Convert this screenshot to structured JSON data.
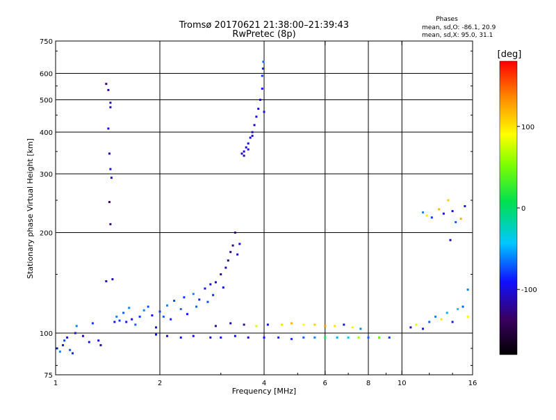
{
  "header": {
    "title_line1": "Tromsø 20170621 21:38:00–21:39:43",
    "title_line2": "RwPretec (8p)"
  },
  "phase_box": {
    "title": "Phases",
    "line_o": "mean, sd,O: -86.1, 20.9",
    "line_x": "mean, sd,X:  95.0, 31.1"
  },
  "chart_data": {
    "type": "scatter",
    "title": "Tromsø 20170621 21:38:00–21:39:43",
    "subtitle": "RwPretec (8p)",
    "xlabel": "Frequency [MHz]",
    "ylabel": "Stationary phase Virtual Height [km]",
    "x_scale": "log",
    "y_scale": "log",
    "xlim": [
      1,
      16
    ],
    "ylim": [
      75,
      750
    ],
    "x_ticks": [
      1,
      2,
      4,
      6,
      8,
      10,
      16
    ],
    "x_tick_labels": [
      "1",
      "2",
      "4",
      "6",
      "8",
      "10",
      "16"
    ],
    "y_ticks": [
      75,
      100,
      200,
      300,
      400,
      500,
      600,
      750
    ],
    "y_tick_labels": [
      "75",
      "100",
      "200",
      "300",
      "400",
      "500",
      "600",
      "750"
    ],
    "grid_x": [
      2,
      4,
      6,
      8,
      10
    ],
    "grid_y": [
      100,
      200,
      300,
      400,
      500,
      600
    ],
    "colorbar": {
      "label": "[deg]",
      "range": [
        -180,
        180
      ],
      "ticks": [
        -100,
        0,
        100
      ],
      "tick_labels": [
        "-100",
        "0",
        "100"
      ]
    },
    "series": [
      {
        "points": [
          [
            1.01,
            90,
            -80
          ],
          [
            1.03,
            88,
            -60
          ],
          [
            1.05,
            92,
            -90
          ],
          [
            1.06,
            95,
            -75
          ],
          [
            1.08,
            97,
            -100
          ],
          [
            1.1,
            89,
            -70
          ],
          [
            1.12,
            87,
            -85
          ],
          [
            1.14,
            100,
            -95
          ],
          [
            1.15,
            105,
            -60
          ],
          [
            1.2,
            98,
            -110
          ],
          [
            1.25,
            94,
            -90
          ],
          [
            1.28,
            107,
            -80
          ],
          [
            1.33,
            95,
            -100
          ],
          [
            1.35,
            92,
            -120
          ],
          [
            1.4,
            143,
            -100
          ],
          [
            1.46,
            145,
            -110
          ],
          [
            1.48,
            108,
            -90
          ],
          [
            1.5,
            112,
            -60
          ],
          [
            1.53,
            109,
            -80
          ],
          [
            1.57,
            115,
            -70
          ],
          [
            1.6,
            108,
            -90
          ],
          [
            1.63,
            119,
            -60
          ],
          [
            1.66,
            110,
            -100
          ],
          [
            1.7,
            106,
            -70
          ],
          [
            1.75,
            112,
            -80
          ],
          [
            1.8,
            117,
            -60
          ],
          [
            1.85,
            120,
            -75
          ],
          [
            1.9,
            113,
            -90
          ],
          [
            1.4,
            558,
            -130
          ],
          [
            1.42,
            535,
            -120
          ],
          [
            1.44,
            490,
            -110
          ],
          [
            1.44,
            475,
            -100
          ],
          [
            1.42,
            410,
            -105
          ],
          [
            1.43,
            345,
            -115
          ],
          [
            1.44,
            310,
            -100
          ],
          [
            1.45,
            292,
            -95
          ],
          [
            1.43,
            247,
            -130
          ],
          [
            1.44,
            212,
            -120
          ],
          [
            1.95,
            104,
            -90
          ],
          [
            2.0,
            116,
            -80
          ],
          [
            2.05,
            112,
            -70
          ],
          [
            2.1,
            121,
            -60
          ],
          [
            2.15,
            110,
            -85
          ],
          [
            2.2,
            125,
            -75
          ],
          [
            2.3,
            118,
            -65
          ],
          [
            2.35,
            128,
            -80
          ],
          [
            2.4,
            114,
            -90
          ],
          [
            2.5,
            131,
            -60
          ],
          [
            2.55,
            120,
            -70
          ],
          [
            2.6,
            126,
            -85
          ],
          [
            2.7,
            136,
            -90
          ],
          [
            2.75,
            124,
            -75
          ],
          [
            2.8,
            140,
            -100
          ],
          [
            2.85,
            130,
            -80
          ],
          [
            2.9,
            142,
            -110
          ],
          [
            3.0,
            150,
            -120
          ],
          [
            3.05,
            137,
            -100
          ],
          [
            3.1,
            157,
            -115
          ],
          [
            3.15,
            165,
            -120
          ],
          [
            3.2,
            175,
            -125
          ],
          [
            3.25,
            183,
            -130
          ],
          [
            3.3,
            200,
            -120
          ],
          [
            3.35,
            172,
            -110
          ],
          [
            3.4,
            185,
            -100
          ],
          [
            3.45,
            345,
            -110
          ],
          [
            3.5,
            350,
            -105
          ],
          [
            3.55,
            360,
            -100
          ],
          [
            3.6,
            370,
            -95
          ],
          [
            3.65,
            385,
            -100
          ],
          [
            3.7,
            400,
            -110
          ],
          [
            3.75,
            420,
            -105
          ],
          [
            3.8,
            445,
            -100
          ],
          [
            3.85,
            470,
            -95
          ],
          [
            3.9,
            500,
            -100
          ],
          [
            3.95,
            540,
            -90
          ],
          [
            3.95,
            590,
            -80
          ],
          [
            3.97,
            620,
            -85
          ],
          [
            3.98,
            650,
            -70
          ],
          [
            4.0,
            460,
            -100
          ],
          [
            3.5,
            340,
            -110
          ],
          [
            3.6,
            355,
            -100
          ],
          [
            3.7,
            390,
            -105
          ],
          [
            1.95,
            99,
            -90
          ],
          [
            2.1,
            98,
            -100
          ],
          [
            2.3,
            97,
            -90
          ],
          [
            2.5,
            98,
            -95
          ],
          [
            2.8,
            97,
            -100
          ],
          [
            3.0,
            97,
            -90
          ],
          [
            3.3,
            98,
            -95
          ],
          [
            3.6,
            97,
            -100
          ],
          [
            4.0,
            97,
            -90
          ],
          [
            4.4,
            97,
            -85
          ],
          [
            4.8,
            96,
            -80
          ],
          [
            5.2,
            97,
            -70
          ],
          [
            5.6,
            97,
            -60
          ],
          [
            6.0,
            97,
            20
          ],
          [
            6.5,
            97,
            -50
          ],
          [
            7.0,
            97,
            -40
          ],
          [
            7.5,
            97,
            60
          ],
          [
            8.0,
            97,
            -70
          ],
          [
            8.6,
            97,
            40
          ],
          [
            9.2,
            97,
            -80
          ],
          [
            2.9,
            105,
            -120
          ],
          [
            3.2,
            107,
            -115
          ],
          [
            3.5,
            106,
            -110
          ],
          [
            3.8,
            105,
            80
          ],
          [
            4.1,
            106,
            -100
          ],
          [
            4.5,
            106,
            100
          ],
          [
            4.8,
            107,
            120
          ],
          [
            5.2,
            106,
            90
          ],
          [
            5.6,
            106,
            110
          ],
          [
            6.0,
            105,
            130
          ],
          [
            6.4,
            105,
            100
          ],
          [
            6.8,
            106,
            -90
          ],
          [
            7.2,
            104,
            95
          ],
          [
            7.6,
            103,
            -60
          ],
          [
            10.6,
            104,
            -100
          ],
          [
            11.0,
            106,
            80
          ],
          [
            11.5,
            103,
            -90
          ],
          [
            12.0,
            108,
            -70
          ],
          [
            12.5,
            112,
            -60
          ],
          [
            13.0,
            110,
            100
          ],
          [
            13.5,
            115,
            -50
          ],
          [
            14.0,
            108,
            -90
          ],
          [
            14.5,
            118,
            -40
          ],
          [
            15.0,
            120,
            -70
          ],
          [
            15.5,
            112,
            90
          ],
          [
            15.5,
            135,
            -60
          ],
          [
            11.5,
            230,
            -60
          ],
          [
            11.8,
            225,
            100
          ],
          [
            12.2,
            222,
            -80
          ],
          [
            12.8,
            235,
            120
          ],
          [
            13.2,
            228,
            -90
          ],
          [
            13.6,
            250,
            110
          ],
          [
            14.0,
            232,
            -100
          ],
          [
            14.3,
            215,
            -70
          ],
          [
            14.8,
            220,
            120
          ],
          [
            15.2,
            240,
            -90
          ],
          [
            13.8,
            190,
            -120
          ]
        ]
      }
    ]
  }
}
